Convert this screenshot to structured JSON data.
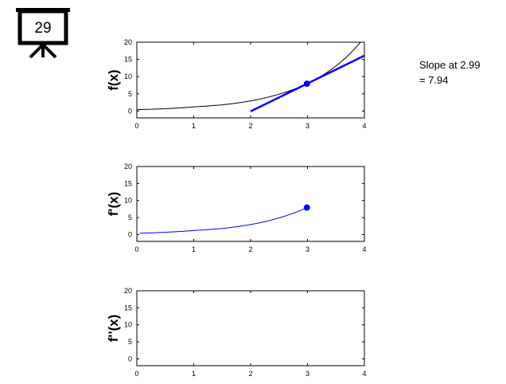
{
  "slide_badge": {
    "number": "29",
    "icon": "presentation-board-icon"
  },
  "annotation": {
    "line1": "Slope at 2.99",
    "line2": "= 7.94"
  },
  "colors": {
    "function": "#000000",
    "tangent": "#0000ff",
    "derivative": "#0000ff",
    "point": "#0000ff"
  },
  "chart_data": [
    {
      "type": "line",
      "ylabel": "f(x)",
      "xlim": [
        0,
        4
      ],
      "ylim": [
        -2,
        20
      ],
      "xticks": [
        0,
        1,
        2,
        3,
        4
      ],
      "yticks": [
        0,
        5,
        10,
        15,
        20
      ],
      "grid": false,
      "series": [
        {
          "x": [
            0,
            0.5,
            1,
            1.5,
            2,
            2.5,
            3,
            3.5,
            4
          ],
          "y": [
            0.4,
            0.68,
            1.2,
            1.8,
            2.95,
            4.9,
            8.0,
            13.1,
            21.4
          ]
        },
        {
          "x": [
            2,
            4
          ],
          "y": [
            -0.1,
            16.1
          ]
        }
      ],
      "points": [
        {
          "x": 2.99,
          "y": 7.94
        }
      ]
    },
    {
      "type": "line",
      "ylabel": "f'(x)",
      "xlim": [
        0,
        4
      ],
      "ylim": [
        -2,
        20
      ],
      "xticks": [
        0,
        1,
        2,
        3,
        4
      ],
      "yticks": [
        0,
        5,
        10,
        15,
        20
      ],
      "grid": false,
      "series": [
        {
          "x": [
            0.05,
            0.5,
            1,
            1.5,
            2,
            2.5,
            2.99
          ],
          "y": [
            0.4,
            0.68,
            1.2,
            1.8,
            2.95,
            4.9,
            7.94
          ]
        }
      ],
      "points": [
        {
          "x": 2.99,
          "y": 7.94
        }
      ]
    },
    {
      "type": "line",
      "ylabel": "f''(x)",
      "xlim": [
        0,
        4
      ],
      "ylim": [
        -2,
        20
      ],
      "xticks": [
        0,
        1,
        2,
        3,
        4
      ],
      "yticks": [
        0,
        5,
        10,
        15,
        20
      ],
      "grid": false,
      "series": [],
      "points": []
    }
  ]
}
